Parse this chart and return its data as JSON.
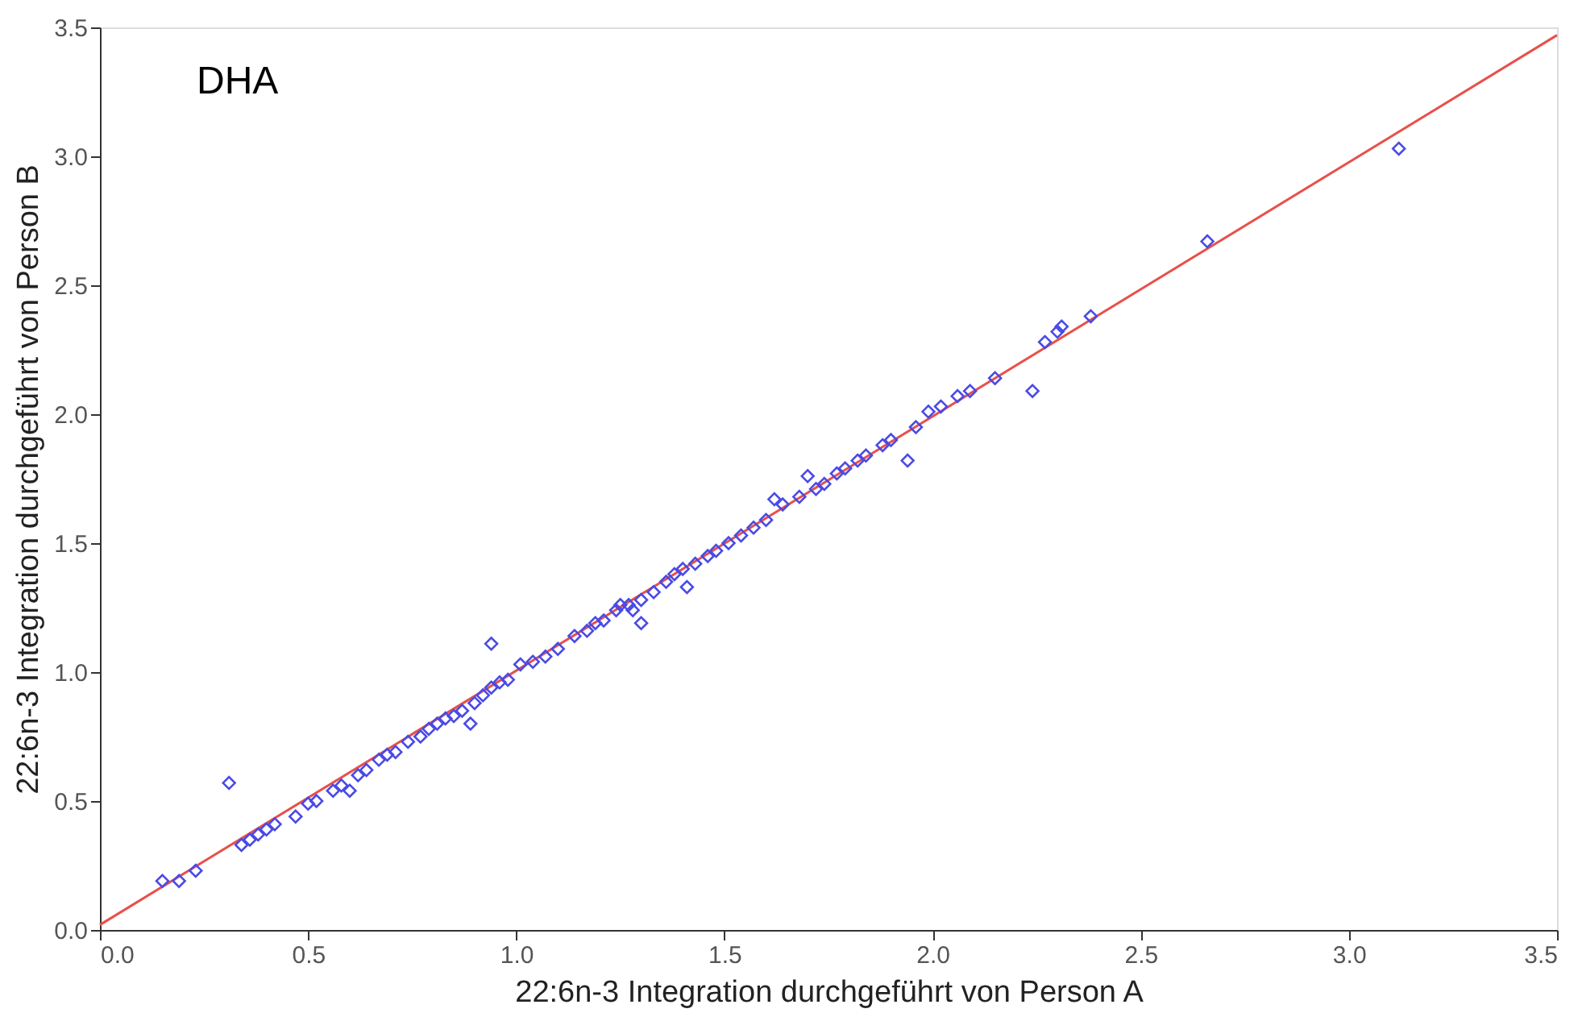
{
  "chart_data": {
    "type": "scatter",
    "xlabel": "22:6n-3 Integration durchgeführt von Person A",
    "ylabel": "22:6n-3 Integration durchgeführt von Person B",
    "annotations": [
      "DHA"
    ],
    "xlim": [
      0,
      3.5
    ],
    "ylim": [
      0,
      3.5
    ],
    "xticks": [
      {
        "value": 0,
        "label": "0.0"
      },
      {
        "value": 0.5,
        "label": "0.5"
      },
      {
        "value": 1,
        "label": "1.0"
      },
      {
        "value": 1.5,
        "label": "1.5"
      },
      {
        "value": 2,
        "label": "2.0"
      },
      {
        "value": 2.5,
        "label": "2.5"
      },
      {
        "value": 3,
        "label": "3.0"
      },
      {
        "value": 3.5,
        "label": "3.5"
      }
    ],
    "yticks": [
      {
        "value": 0,
        "label": "0.0"
      },
      {
        "value": 0.5,
        "label": "0.5"
      },
      {
        "value": 1,
        "label": "1.0"
      },
      {
        "value": 1.5,
        "label": "1.5"
      },
      {
        "value": 2,
        "label": "2.0"
      },
      {
        "value": 2.5,
        "label": "2.5"
      },
      {
        "value": 3,
        "label": "3.0"
      },
      {
        "value": 3.5,
        "label": "3.5"
      }
    ],
    "grid": false,
    "marker": "diamond",
    "series": [
      {
        "color": "#4a4ae6",
        "x": [
          0.15,
          0.19,
          0.23,
          0.31,
          0.34,
          0.36,
          0.38,
          0.4,
          0.42,
          0.47,
          0.5,
          0.52,
          0.56,
          0.58,
          0.6,
          0.62,
          0.64,
          0.67,
          0.69,
          0.71,
          0.74,
          0.77,
          0.79,
          0.81,
          0.83,
          0.85,
          0.87,
          0.89,
          0.9,
          0.92,
          0.94,
          0.94,
          0.96,
          0.98,
          1.01,
          1.04,
          1.07,
          1.1,
          1.14,
          1.17,
          1.19,
          1.21,
          1.24,
          1.25,
          1.27,
          1.28,
          1.3,
          1.3,
          1.33,
          1.36,
          1.38,
          1.4,
          1.41,
          1.43,
          1.46,
          1.48,
          1.51,
          1.54,
          1.57,
          1.6,
          1.62,
          1.64,
          1.68,
          1.7,
          1.72,
          1.74,
          1.77,
          1.79,
          1.82,
          1.84,
          1.88,
          1.9,
          1.94,
          1.96,
          1.99,
          2.02,
          2.06,
          2.09,
          2.15,
          2.24,
          2.27,
          2.3,
          2.31,
          2.38,
          2.66,
          3.12
        ],
        "values": [
          0.19,
          0.19,
          0.23,
          0.57,
          0.33,
          0.35,
          0.37,
          0.39,
          0.41,
          0.44,
          0.49,
          0.5,
          0.54,
          0.56,
          0.54,
          0.6,
          0.62,
          0.66,
          0.68,
          0.69,
          0.73,
          0.75,
          0.78,
          0.8,
          0.82,
          0.83,
          0.85,
          0.8,
          0.88,
          0.91,
          1.11,
          0.94,
          0.96,
          0.97,
          1.03,
          1.04,
          1.06,
          1.09,
          1.14,
          1.16,
          1.19,
          1.2,
          1.24,
          1.26,
          1.26,
          1.24,
          1.19,
          1.28,
          1.31,
          1.35,
          1.38,
          1.4,
          1.33,
          1.42,
          1.45,
          1.47,
          1.5,
          1.53,
          1.56,
          1.59,
          1.67,
          1.65,
          1.68,
          1.76,
          1.71,
          1.73,
          1.77,
          1.79,
          1.82,
          1.84,
          1.88,
          1.9,
          1.82,
          1.95,
          2.01,
          2.03,
          2.07,
          2.09,
          2.14,
          2.09,
          2.28,
          2.32,
          2.34,
          2.38,
          2.67,
          3.03
        ]
      },
      {
        "type": "line",
        "marker": "none",
        "color": "#e8504a",
        "x": [
          0,
          3.5
        ],
        "values": [
          0.02,
          3.47
        ]
      }
    ]
  }
}
